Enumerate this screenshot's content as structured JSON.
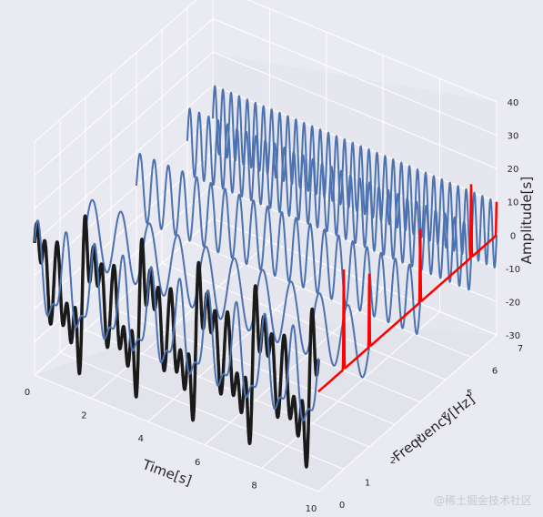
{
  "chart_data": {
    "type": "line",
    "projection": "3d",
    "xlabel": "Time[s]",
    "ylabel": "Frequency[Hz]",
    "zlabel": "Amplitude[s]",
    "xlim": [
      0,
      10
    ],
    "ylim": [
      0,
      7
    ],
    "zlim": [
      -30,
      40
    ],
    "x_ticks": [
      "0",
      "2",
      "4",
      "6",
      "8",
      "10"
    ],
    "y_ticks": [
      "0",
      "1",
      "2",
      "3",
      "4",
      "5",
      "6",
      "7"
    ],
    "z_ticks": [
      "40",
      "30",
      "20",
      "10",
      "0",
      "-10",
      "-20",
      "-30"
    ],
    "grid": true,
    "components": [
      {
        "frequency": 0,
        "amplitude": 0,
        "color": "#4c72b0"
      },
      {
        "frequency": 2,
        "amplitude": 10,
        "color": "#4c72b0"
      },
      {
        "frequency": 4,
        "amplitude": 10,
        "color": "#4c72b0"
      },
      {
        "frequency": 6,
        "amplitude": 10,
        "color": "#4c72b0"
      },
      {
        "frequency": 7,
        "amplitude": 10,
        "color": "#4c72b0"
      }
    ],
    "sum_series": {
      "frequency": 0,
      "color": "#1a1a1a"
    },
    "spectrum": {
      "color": "#ff0000",
      "peaks": [
        {
          "frequency": 1.0,
          "height": 30
        },
        {
          "frequency": 2.0,
          "height": 22
        },
        {
          "frequency": 4.0,
          "height": 22
        },
        {
          "frequency": 6.0,
          "height": 22
        },
        {
          "frequency": 7.0,
          "height": 10
        }
      ]
    }
  },
  "watermark": "@稀土掘金技术社区"
}
